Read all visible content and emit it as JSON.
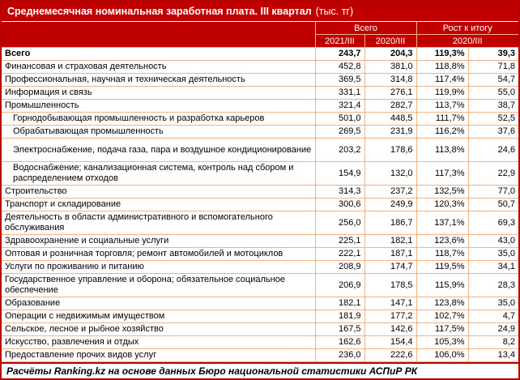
{
  "title": {
    "main": "Среднемесячная номинальная заработная плата. III квартал",
    "unit": "(тыс. тг)"
  },
  "header": {
    "group_total": "Всего",
    "group_growth": "Рост к итогу",
    "col_2021": "2021/III",
    "col_2020": "2020/III",
    "growth_base": "2020/III"
  },
  "colors": {
    "header_bg": "#c00000",
    "row_border": "#f4b183",
    "outer_border": "#b40000",
    "header_text": "#ffffff",
    "body_text": "#000000"
  },
  "rows": [
    {
      "label": "Всего",
      "v2021": "243,7",
      "v2020": "204,3",
      "growth_pct": "119,3%",
      "growth_abs": "39,3",
      "bold": true,
      "indent": false,
      "lines": 1
    },
    {
      "label": "Финансовая и страховая деятельность",
      "v2021": "452,8",
      "v2020": "381,0",
      "growth_pct": "118,8%",
      "growth_abs": "71,8",
      "bold": false,
      "indent": false,
      "lines": 1
    },
    {
      "label": "Профессиональная, научная и техническая деятельность",
      "v2021": "369,5",
      "v2020": "314,8",
      "growth_pct": "117,4%",
      "growth_abs": "54,7",
      "bold": false,
      "indent": false,
      "lines": 1
    },
    {
      "label": "Информация и связь",
      "v2021": "331,1",
      "v2020": "276,1",
      "growth_pct": "119,9%",
      "growth_abs": "55,0",
      "bold": false,
      "indent": false,
      "lines": 1
    },
    {
      "label": "Промышленность",
      "v2021": "321,4",
      "v2020": "282,7",
      "growth_pct": "113,7%",
      "growth_abs": "38,7",
      "bold": false,
      "indent": false,
      "lines": 1
    },
    {
      "label": "Горнодобывающая промышленность и разработка карьеров",
      "v2021": "501,0",
      "v2020": "448,5",
      "growth_pct": "111,7%",
      "growth_abs": "52,5",
      "bold": false,
      "indent": true,
      "lines": 1
    },
    {
      "label": "Обрабатывающая промышленность",
      "v2021": "269,5",
      "v2020": "231,9",
      "growth_pct": "116,2%",
      "growth_abs": "37,6",
      "bold": false,
      "indent": true,
      "lines": 1
    },
    {
      "label": "Электроснабжение, подача газа, пара и воздушное кондиционирование",
      "v2021": "203,2",
      "v2020": "178,6",
      "growth_pct": "113,8%",
      "growth_abs": "24,6",
      "bold": false,
      "indent": true,
      "lines": 2
    },
    {
      "label": "Водоснабжение; канализационная система, контроль над сбором и распределением отходов",
      "v2021": "154,9",
      "v2020": "132,0",
      "growth_pct": "117,3%",
      "growth_abs": "22,9",
      "bold": false,
      "indent": true,
      "lines": 2
    },
    {
      "label": "Строительство",
      "v2021": "314,3",
      "v2020": "237,2",
      "growth_pct": "132,5%",
      "growth_abs": "77,0",
      "bold": false,
      "indent": false,
      "lines": 1
    },
    {
      "label": "Транспорт и складирование",
      "v2021": "300,6",
      "v2020": "249,9",
      "growth_pct": "120,3%",
      "growth_abs": "50,7",
      "bold": false,
      "indent": false,
      "lines": 1
    },
    {
      "label": "Деятельность в области административного и вспомогательного обслуживания",
      "v2021": "256,0",
      "v2020": "186,7",
      "growth_pct": "137,1%",
      "growth_abs": "69,3",
      "bold": false,
      "indent": false,
      "lines": 2
    },
    {
      "label": "Здравоохранение и социальные услуги",
      "v2021": "225,1",
      "v2020": "182,1",
      "growth_pct": "123,6%",
      "growth_abs": "43,0",
      "bold": false,
      "indent": false,
      "lines": 1
    },
    {
      "label": "Оптовая и розничная торговля; ремонт автомобилей и мотоциклов",
      "v2021": "222,1",
      "v2020": "187,1",
      "growth_pct": "118,7%",
      "growth_abs": "35,0",
      "bold": false,
      "indent": false,
      "lines": 1
    },
    {
      "label": "Услуги по проживанию и питанию",
      "v2021": "208,9",
      "v2020": "174,7",
      "growth_pct": "119,5%",
      "growth_abs": "34,1",
      "bold": false,
      "indent": false,
      "lines": 1
    },
    {
      "label": "Государственное управление и оборона; обязательное социальное обеспечение",
      "v2021": "206,9",
      "v2020": "178,5",
      "growth_pct": "115,9%",
      "growth_abs": "28,3",
      "bold": false,
      "indent": false,
      "lines": 2
    },
    {
      "label": "Образование",
      "v2021": "182,1",
      "v2020": "147,1",
      "growth_pct": "123,8%",
      "growth_abs": "35,0",
      "bold": false,
      "indent": false,
      "lines": 1
    },
    {
      "label": "Операции с недвижимым имуществом",
      "v2021": "181,9",
      "v2020": "177,2",
      "growth_pct": "102,7%",
      "growth_abs": "4,7",
      "bold": false,
      "indent": false,
      "lines": 1
    },
    {
      "label": "Сельское, лесное и рыбное хозяйство",
      "v2021": "167,5",
      "v2020": "142,6",
      "growth_pct": "117,5%",
      "growth_abs": "24,9",
      "bold": false,
      "indent": false,
      "lines": 1
    },
    {
      "label": "Искусство, развлечения и отдых",
      "v2021": "162,6",
      "v2020": "154,4",
      "growth_pct": "105,3%",
      "growth_abs": "8,2",
      "bold": false,
      "indent": false,
      "lines": 1
    },
    {
      "label": "Предоставление прочих видов услуг",
      "v2021": "236,0",
      "v2020": "222,6",
      "growth_pct": "106,0%",
      "growth_abs": "13,4",
      "bold": false,
      "indent": false,
      "lines": 1
    }
  ],
  "footer": {
    "text": "Расчёты Ranking.kz на основе данных Бюро национальной статистики АСПиР РК"
  },
  "chart_data": {
    "type": "table",
    "title": "Среднемесячная номинальная заработная плата. III квартал (тыс. тг)",
    "columns": [
      {
        "group": "",
        "sub": ""
      },
      {
        "group": "Всего",
        "sub": "2021/III"
      },
      {
        "group": "Всего",
        "sub": "2020/III"
      },
      {
        "group": "Рост к итогу",
        "sub": "2020/III"
      },
      {
        "group": "Рост к итогу",
        "sub": "2020/III"
      }
    ],
    "units": {
      "values": "тыс. тг",
      "growth_pct": "%",
      "growth_abs": "тыс. тг"
    },
    "rows": [
      [
        "Всего",
        243.7,
        204.3,
        119.3,
        39.3
      ],
      [
        "Финансовая и страховая деятельность",
        452.8,
        381.0,
        118.8,
        71.8
      ],
      [
        "Профессиональная, научная и техническая деятельность",
        369.5,
        314.8,
        117.4,
        54.7
      ],
      [
        "Информация и связь",
        331.1,
        276.1,
        119.9,
        55.0
      ],
      [
        "Промышленность",
        321.4,
        282.7,
        113.7,
        38.7
      ],
      [
        "Горнодобывающая промышленность и разработка карьеров",
        501.0,
        448.5,
        111.7,
        52.5
      ],
      [
        "Обрабатывающая промышленность",
        269.5,
        231.9,
        116.2,
        37.6
      ],
      [
        "Электроснабжение, подача газа, пара и воздушное кондиционирование",
        203.2,
        178.6,
        113.8,
        24.6
      ],
      [
        "Водоснабжение; канализационная система, контроль над сбором и распределением отходов",
        154.9,
        132.0,
        117.3,
        22.9
      ],
      [
        "Строительство",
        314.3,
        237.2,
        132.5,
        77.0
      ],
      [
        "Транспорт и складирование",
        300.6,
        249.9,
        120.3,
        50.7
      ],
      [
        "Деятельность в области административного и вспомогательного обслуживания",
        256.0,
        186.7,
        137.1,
        69.3
      ],
      [
        "Здравоохранение и социальные услуги",
        225.1,
        182.1,
        123.6,
        43.0
      ],
      [
        "Оптовая и розничная торговля; ремонт автомобилей и мотоциклов",
        222.1,
        187.1,
        118.7,
        35.0
      ],
      [
        "Услуги по проживанию и питанию",
        208.9,
        174.7,
        119.5,
        34.1
      ],
      [
        "Государственное управление и оборона; обязательное социальное обеспечение",
        206.9,
        178.5,
        115.9,
        28.3
      ],
      [
        "Образование",
        182.1,
        147.1,
        123.8,
        35.0
      ],
      [
        "Операции с недвижимым имуществом",
        181.9,
        177.2,
        102.7,
        4.7
      ],
      [
        "Сельское, лесное и рыбное хозяйство",
        167.5,
        142.6,
        117.5,
        24.9
      ],
      [
        "Искусство, развлечения и отдых",
        162.6,
        154.4,
        105.3,
        8.2
      ],
      [
        "Предоставление прочих видов услуг",
        236.0,
        222.6,
        106.0,
        13.4
      ]
    ],
    "source": "Расчёты Ranking.kz на основе данных Бюро национальной статистики АСПиР РК"
  }
}
